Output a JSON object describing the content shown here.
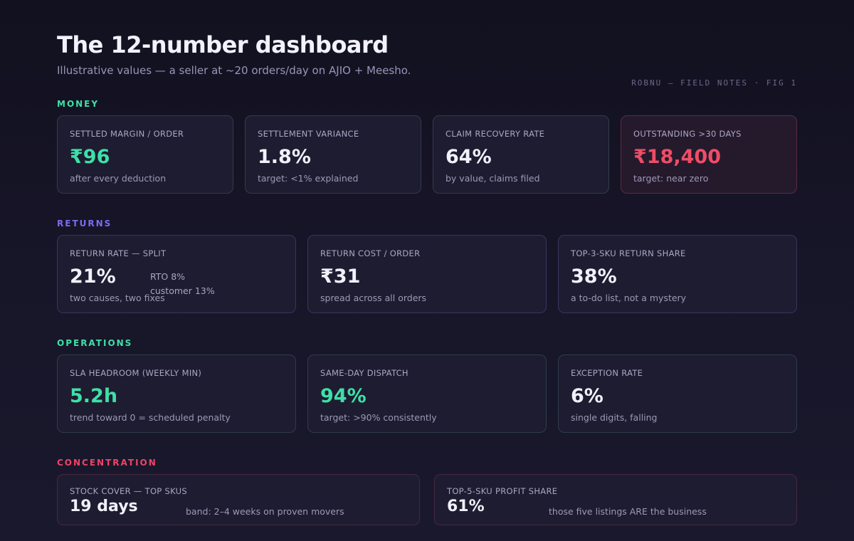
{
  "header": {
    "title": "The 12-number dashboard",
    "subtitle": "Illustrative values — a seller at ~20 orders/day on AJIO + Meesho.",
    "fig_label": "ROBNU — FIELD NOTES · FIG 1"
  },
  "colors": {
    "money": "#3ee0a8",
    "returns": "#7b6cf0",
    "operations": "#3ee0a8",
    "concentration": "#ee4466",
    "alert": "#ef4d68",
    "neutral": "#f2f0fa"
  },
  "sections": {
    "money": {
      "label": "MONEY",
      "cards": [
        {
          "label": "SETTLED MARGIN / ORDER",
          "value": "₹96",
          "note": "after every deduction"
        },
        {
          "label": "SETTLEMENT VARIANCE",
          "value": "1.8%",
          "note": "target: <1% explained"
        },
        {
          "label": "CLAIM RECOVERY RATE",
          "value": "64%",
          "note": "by value, claims filed"
        },
        {
          "label": "OUTSTANDING >30 DAYS",
          "value": "₹18,400",
          "note": "target: near zero"
        }
      ]
    },
    "returns": {
      "label": "RETURNS",
      "cards": [
        {
          "label": "RETURN RATE — SPLIT",
          "value": "21%",
          "note": "two causes, two fixes",
          "split_rto": "RTO 8%",
          "split_customer": "customer 13%"
        },
        {
          "label": "RETURN COST / ORDER",
          "value": "₹31",
          "note": "spread across all orders"
        },
        {
          "label": "TOP-3-SKU RETURN SHARE",
          "value": "38%",
          "note": "a to-do list, not a mystery"
        }
      ]
    },
    "operations": {
      "label": "OPERATIONS",
      "cards": [
        {
          "label": "SLA HEADROOM (WEEKLY MIN)",
          "value": "5.2h",
          "note": "trend toward 0 = scheduled penalty"
        },
        {
          "label": "SAME-DAY DISPATCH",
          "value": "94%",
          "note": "target: >90% consistently"
        },
        {
          "label": "EXCEPTION RATE",
          "value": "6%",
          "note": "single digits, falling"
        }
      ]
    },
    "concentration": {
      "label": "CONCENTRATION",
      "cards": [
        {
          "label": "STOCK COVER — TOP SKUS",
          "value": "19 days",
          "note": "band: 2–4 weeks on proven movers"
        },
        {
          "label": "TOP-5-SKU PROFIT SHARE",
          "value": "61%",
          "note": "those five listings ARE the business"
        }
      ]
    }
  }
}
